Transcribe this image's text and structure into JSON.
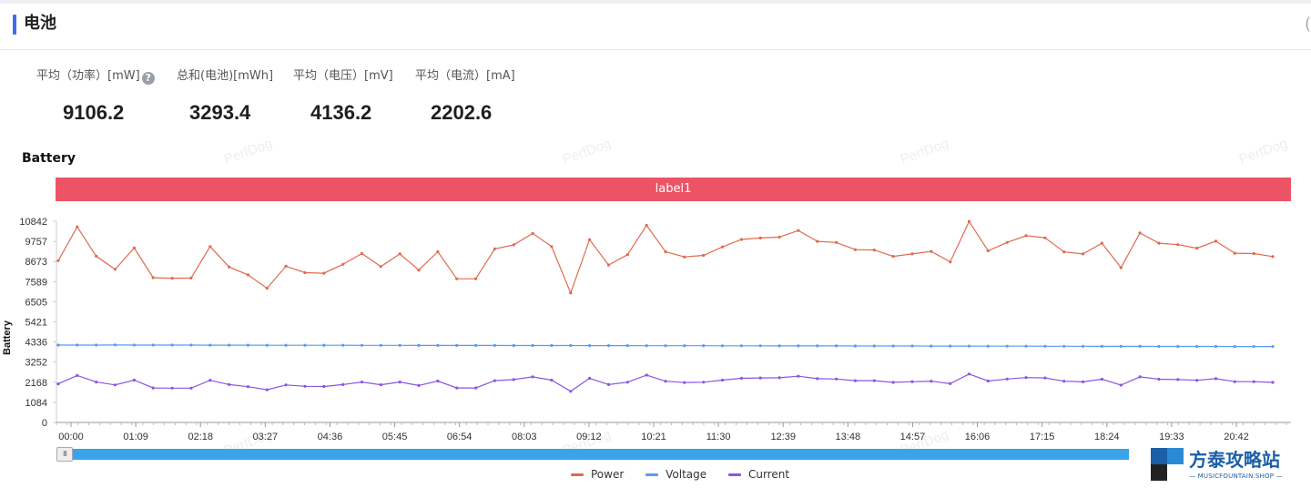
{
  "header": {
    "title": "电池",
    "corner_glyph": "("
  },
  "stats": [
    {
      "label": "平均（功率）[mW]",
      "value": "9106.2",
      "help": true
    },
    {
      "label": "总和(电池)[mWh]",
      "value": "3293.4",
      "help": false
    },
    {
      "label": "平均（电压）[mV]",
      "value": "4136.2",
      "help": false
    },
    {
      "label": "平均（电流）[mA]",
      "value": "2202.6",
      "help": false
    }
  ],
  "help_glyph": "?",
  "chart_title": "Battery",
  "label_bar": "label1",
  "watermark_text": "PerfDog",
  "slider": {
    "handle_glyph": "III"
  },
  "brand": {
    "name": "方泰攻略站",
    "sub": "— MUSICFOUNTAIN.SHOP —"
  },
  "colors": {
    "power": "#e06a4f",
    "voltage": "#5b9cf2",
    "current": "#8a55e0",
    "label_bar": "#ec5465",
    "accent": "#3e6df0"
  },
  "chart_data": {
    "type": "line",
    "ylabel": "Battery",
    "xlabel": "",
    "ylim": [
      0,
      10842
    ],
    "yticks": [
      "0",
      "1084",
      "2168",
      "3252",
      "4336",
      "5421",
      "6505",
      "7589",
      "8673",
      "9757",
      "10842"
    ],
    "xticks": [
      "00:00",
      "01:09",
      "02:18",
      "03:27",
      "04:36",
      "05:45",
      "06:54",
      "08:03",
      "09:12",
      "10:21",
      "11:30",
      "12:39",
      "13:48",
      "14:57",
      "16:06",
      "17:15",
      "18:24",
      "19:33",
      "20:42"
    ],
    "legend_position": "bottom-center",
    "series": [
      {
        "name": "Power",
        "values": [
          8720,
          10540,
          8960,
          8250,
          9400,
          7800,
          7770,
          7780,
          9480,
          8380,
          7950,
          7230,
          8420,
          8070,
          8040,
          8520,
          9100,
          8400,
          9080,
          8210,
          9200,
          7740,
          7740,
          9350,
          9570,
          10190,
          9480,
          6980,
          9850,
          8480,
          9040,
          10620,
          9200,
          8920,
          9000,
          9460,
          9860,
          9940,
          9990,
          10340,
          9760,
          9700,
          9310,
          9290,
          8950,
          9080,
          9220,
          8650,
          10830,
          9250,
          9700,
          10060,
          9950,
          9190,
          9080,
          9660,
          8340,
          10210,
          9660,
          9580,
          9390,
          9770,
          9120,
          9100,
          8940
        ]
      },
      {
        "name": "Voltage",
        "values": [
          4170,
          4170,
          4170,
          4175,
          4170,
          4170,
          4172,
          4170,
          4165,
          4165,
          4165,
          4162,
          4160,
          4160,
          4160,
          4158,
          4155,
          4155,
          4155,
          4152,
          4150,
          4150,
          4150,
          4148,
          4145,
          4145,
          4145,
          4145,
          4142,
          4140,
          4140,
          4138,
          4135,
          4135,
          4135,
          4132,
          4130,
          4130,
          4128,
          4128,
          4125,
          4125,
          4122,
          4122,
          4120,
          4120,
          4118,
          4115,
          4115,
          4112,
          4110,
          4110,
          4108,
          4105,
          4105,
          4102,
          4100,
          4100,
          4098,
          4098,
          4095,
          4095,
          4092,
          4090,
          4090
        ]
      },
      {
        "name": "Current",
        "values": [
          2080,
          2530,
          2180,
          2020,
          2280,
          1860,
          1850,
          1850,
          2270,
          2040,
          1930,
          1760,
          2020,
          1950,
          1940,
          2040,
          2180,
          2030,
          2180,
          1990,
          2230,
          1860,
          1860,
          2250,
          2310,
          2460,
          2280,
          1680,
          2380,
          2040,
          2170,
          2550,
          2220,
          2150,
          2170,
          2280,
          2380,
          2400,
          2410,
          2490,
          2360,
          2340,
          2250,
          2250,
          2160,
          2200,
          2220,
          2090,
          2610,
          2230,
          2340,
          2420,
          2400,
          2220,
          2190,
          2330,
          2010,
          2460,
          2330,
          2310,
          2270,
          2360,
          2200,
          2200,
          2160
        ]
      }
    ]
  }
}
